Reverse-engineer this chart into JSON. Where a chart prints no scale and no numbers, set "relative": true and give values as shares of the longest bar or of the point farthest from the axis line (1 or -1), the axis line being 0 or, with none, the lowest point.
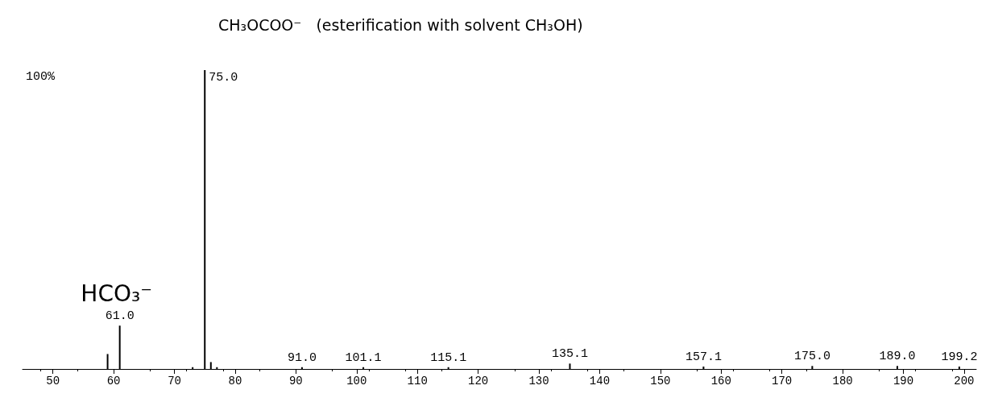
{
  "chart_data": {
    "type": "bar",
    "title": "CH₃OCOO⁻   (esterification with solvent CH₃OH)",
    "relative": true,
    "color": "#000000",
    "x": [
      59,
      61,
      73,
      75,
      76,
      77,
      91,
      101.1,
      115.1,
      135.1,
      157.1,
      175,
      189,
      199.2
    ],
    "values": [
      0.05,
      0.145,
      0.006,
      1,
      0.023,
      0.006,
      0.006,
      0.006,
      0.006,
      0.018,
      0.008,
      0.01,
      0.01,
      0.008
    ],
    "xlim": [
      45,
      202
    ],
    "xticks": [
      50,
      60,
      70,
      80,
      90,
      100,
      110,
      120,
      130,
      140,
      150,
      160,
      170,
      180,
      190,
      200
    ],
    "annotations": [
      "100%",
      {
        "text": "75.0",
        "x": 75,
        "y": 1
      },
      {
        "text": "61.0",
        "x": 61,
        "y": 0.145
      },
      {
        "text": "HCO₃⁻",
        "x": 61,
        "y": 0.145
      },
      {
        "text": "91.0",
        "x": 91,
        "y": 0.006
      },
      {
        "text": "101.1",
        "x": 101.1,
        "y": 0.006
      },
      {
        "text": "115.1",
        "x": 115.1,
        "y": 0.006
      },
      {
        "text": "135.1",
        "x": 135.1,
        "y": 0.018
      },
      {
        "text": "157.1",
        "x": 157.1,
        "y": 0.008
      },
      {
        "text": "175.0",
        "x": 175,
        "y": 0.01
      },
      {
        "text": "189.0",
        "x": 189,
        "y": 0.01
      },
      {
        "text": "199.2",
        "x": 199.2,
        "y": 0.008
      }
    ]
  }
}
